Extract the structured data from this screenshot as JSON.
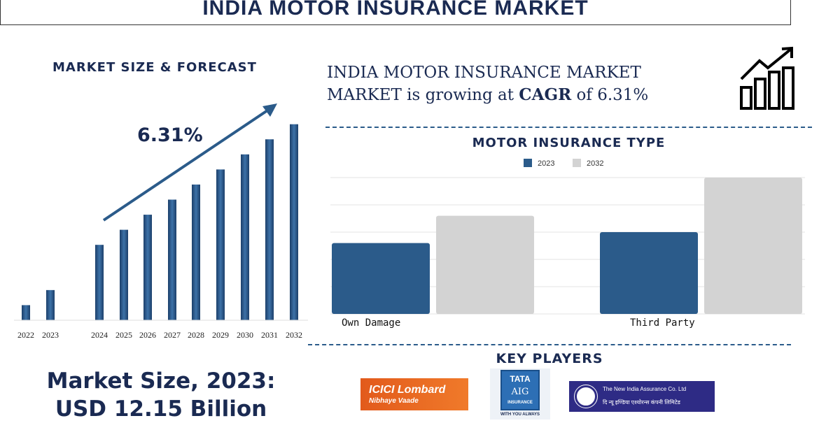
{
  "title": "INDIA MOTOR INSURANCE MARKET",
  "left": {
    "heading": "MARKET SIZE & FORECAST",
    "cagr_label": "6.31%",
    "market_size_line1": "Market Size, 2023:",
    "market_size_line2": "USD 12.15 Billion"
  },
  "headline": {
    "line1": "INDIA MOTOR INSURANCE MARKET",
    "line2_a": "MARKET is growing at ",
    "line2_b": "CAGR",
    "line2_c": " of 6.31%"
  },
  "key_players": {
    "heading": "KEY PLAYERS",
    "players": [
      "ICICI Lombard",
      "Nibhaye Vaade",
      "TATA",
      "AIG",
      "INSURANCE",
      "WITH YOU ALWAYS",
      "The New India Assurance Co. Ltd",
      "दि न्यू इण्डिया एश्योरन्स कंपनी लिमिटेड"
    ]
  },
  "colors": {
    "navy": "#1a2a52",
    "bar_blue": "#2b5b8a",
    "grey": "#d3d3d3"
  },
  "chart_data": [
    {
      "type": "bar",
      "title": "",
      "categories": [
        "2022",
        "2023",
        "2024",
        "2025",
        "2026",
        "2027",
        "2028",
        "2029",
        "2030",
        "2031",
        "2032"
      ],
      "values": [
        23,
        46,
        115,
        138,
        161,
        184,
        207,
        230,
        253,
        276,
        299
      ],
      "grid": false,
      "annotation": "6.31%"
    },
    {
      "type": "bar",
      "title": "MOTOR INSURANCE TYPE",
      "categories": [
        "Own Damage",
        "Third Party"
      ],
      "series": [
        {
          "name": "2023",
          "values": [
            2.6,
            3.0
          ]
        },
        {
          "name": "2032",
          "values": [
            3.6,
            5.0
          ]
        }
      ],
      "ylim": [
        0,
        5
      ],
      "grid": true,
      "legend": "top"
    }
  ]
}
